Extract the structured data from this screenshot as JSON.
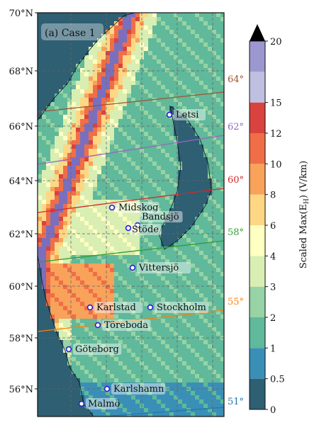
{
  "panel": {
    "title": "(a) Case 1"
  },
  "map": {
    "lon_range": [
      10.5,
      20.5
    ],
    "lat_range": [
      55.0,
      70.0
    ],
    "lat_ticks": [
      "56°N",
      "58°N",
      "60°N",
      "62°N",
      "64°N",
      "66°N",
      "68°N",
      "70°N"
    ]
  },
  "geomagnetic_latitudes": [
    {
      "label": "64°",
      "color": "#a0522d"
    },
    {
      "label": "62°",
      "color": "#9467bd"
    },
    {
      "label": "60°",
      "color": "#d62728"
    },
    {
      "label": "58°",
      "color": "#2ca02c"
    },
    {
      "label": "55°",
      "color": "#ff7f0e"
    },
    {
      "label": "51°",
      "color": "#1f77b4"
    }
  ],
  "sites": [
    {
      "name": "Letsi"
    },
    {
      "name": "Midskog"
    },
    {
      "name": "Bandsjö"
    },
    {
      "name": "Stöde"
    },
    {
      "name": "Vittersjö"
    },
    {
      "name": "Karlstad"
    },
    {
      "name": "Stockholm"
    },
    {
      "name": "Töreboda"
    },
    {
      "name": "Göteborg"
    },
    {
      "name": "Karlshamn"
    },
    {
      "name": "Malmö"
    }
  ],
  "colorbar": {
    "title": "Scaled Max(E",
    "title_sub": "H",
    "title_end": ") (V/km)",
    "ticks": [
      "0",
      "0.5",
      "1",
      "2",
      "3",
      "4",
      "6",
      "8",
      "10",
      "12",
      "15",
      "20"
    ],
    "colors": [
      "#2e5f73",
      "#3a8fb7",
      "#5fb99a",
      "#97d3a4",
      "#d8eeb2",
      "#ffffc2",
      "#fdd784",
      "#f9a25a",
      "#ef6e47",
      "#d8433f",
      "#bfc0e0",
      "#9c98cf",
      "#7a6fbd"
    ]
  },
  "colors": {
    "sea": "#2e5f73",
    "coast": "#111111",
    "site_marker": "#2a1fd6"
  }
}
